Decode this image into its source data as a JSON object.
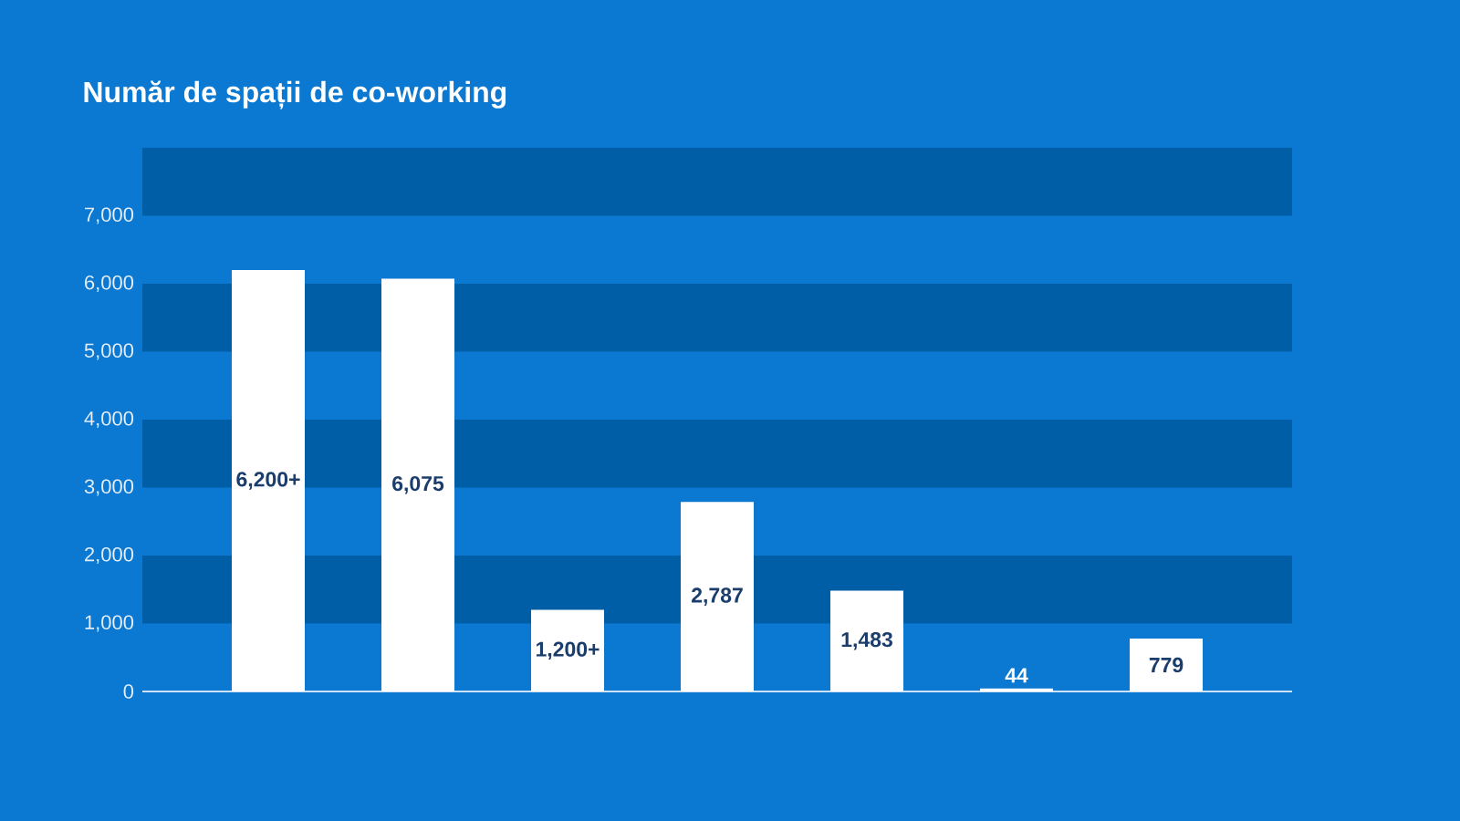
{
  "chart_data": {
    "type": "bar",
    "title": "Număr de spații de co-working",
    "categories": [
      null,
      null,
      null,
      null,
      null,
      null,
      null
    ],
    "values": [
      6200,
      6075,
      1200,
      2787,
      1483,
      44,
      779
    ],
    "value_labels": [
      "6,200+",
      "6,075",
      "1,200+",
      "2,787",
      "1,483",
      "44",
      "779"
    ],
    "color": "#ffffff",
    "ylim": [
      0,
      8000
    ],
    "yticks": [
      0,
      {
        "value": 1000,
        "label": "1,000"
      },
      {
        "value": 2000,
        "label": "2,000"
      },
      {
        "value": 3000,
        "label": "3,000"
      },
      {
        "value": 4000,
        "label": "4,000"
      },
      {
        "value": 5000,
        "label": "5,000"
      },
      {
        "value": 6000,
        "label": "6,000"
      },
      {
        "value": 7000,
        "label": "7,000"
      }
    ],
    "bands": [
      {
        "axis": "y",
        "from": 1000,
        "to": 2000,
        "color": "#005ea7"
      },
      {
        "axis": "y",
        "from": 3000,
        "to": 4000,
        "color": "#005ea7"
      },
      {
        "axis": "y",
        "from": 5000,
        "to": 6000,
        "color": "#005ea7"
      },
      {
        "axis": "y",
        "from": 7000,
        "to": 8000,
        "color": "#005ea7"
      }
    ]
  }
}
